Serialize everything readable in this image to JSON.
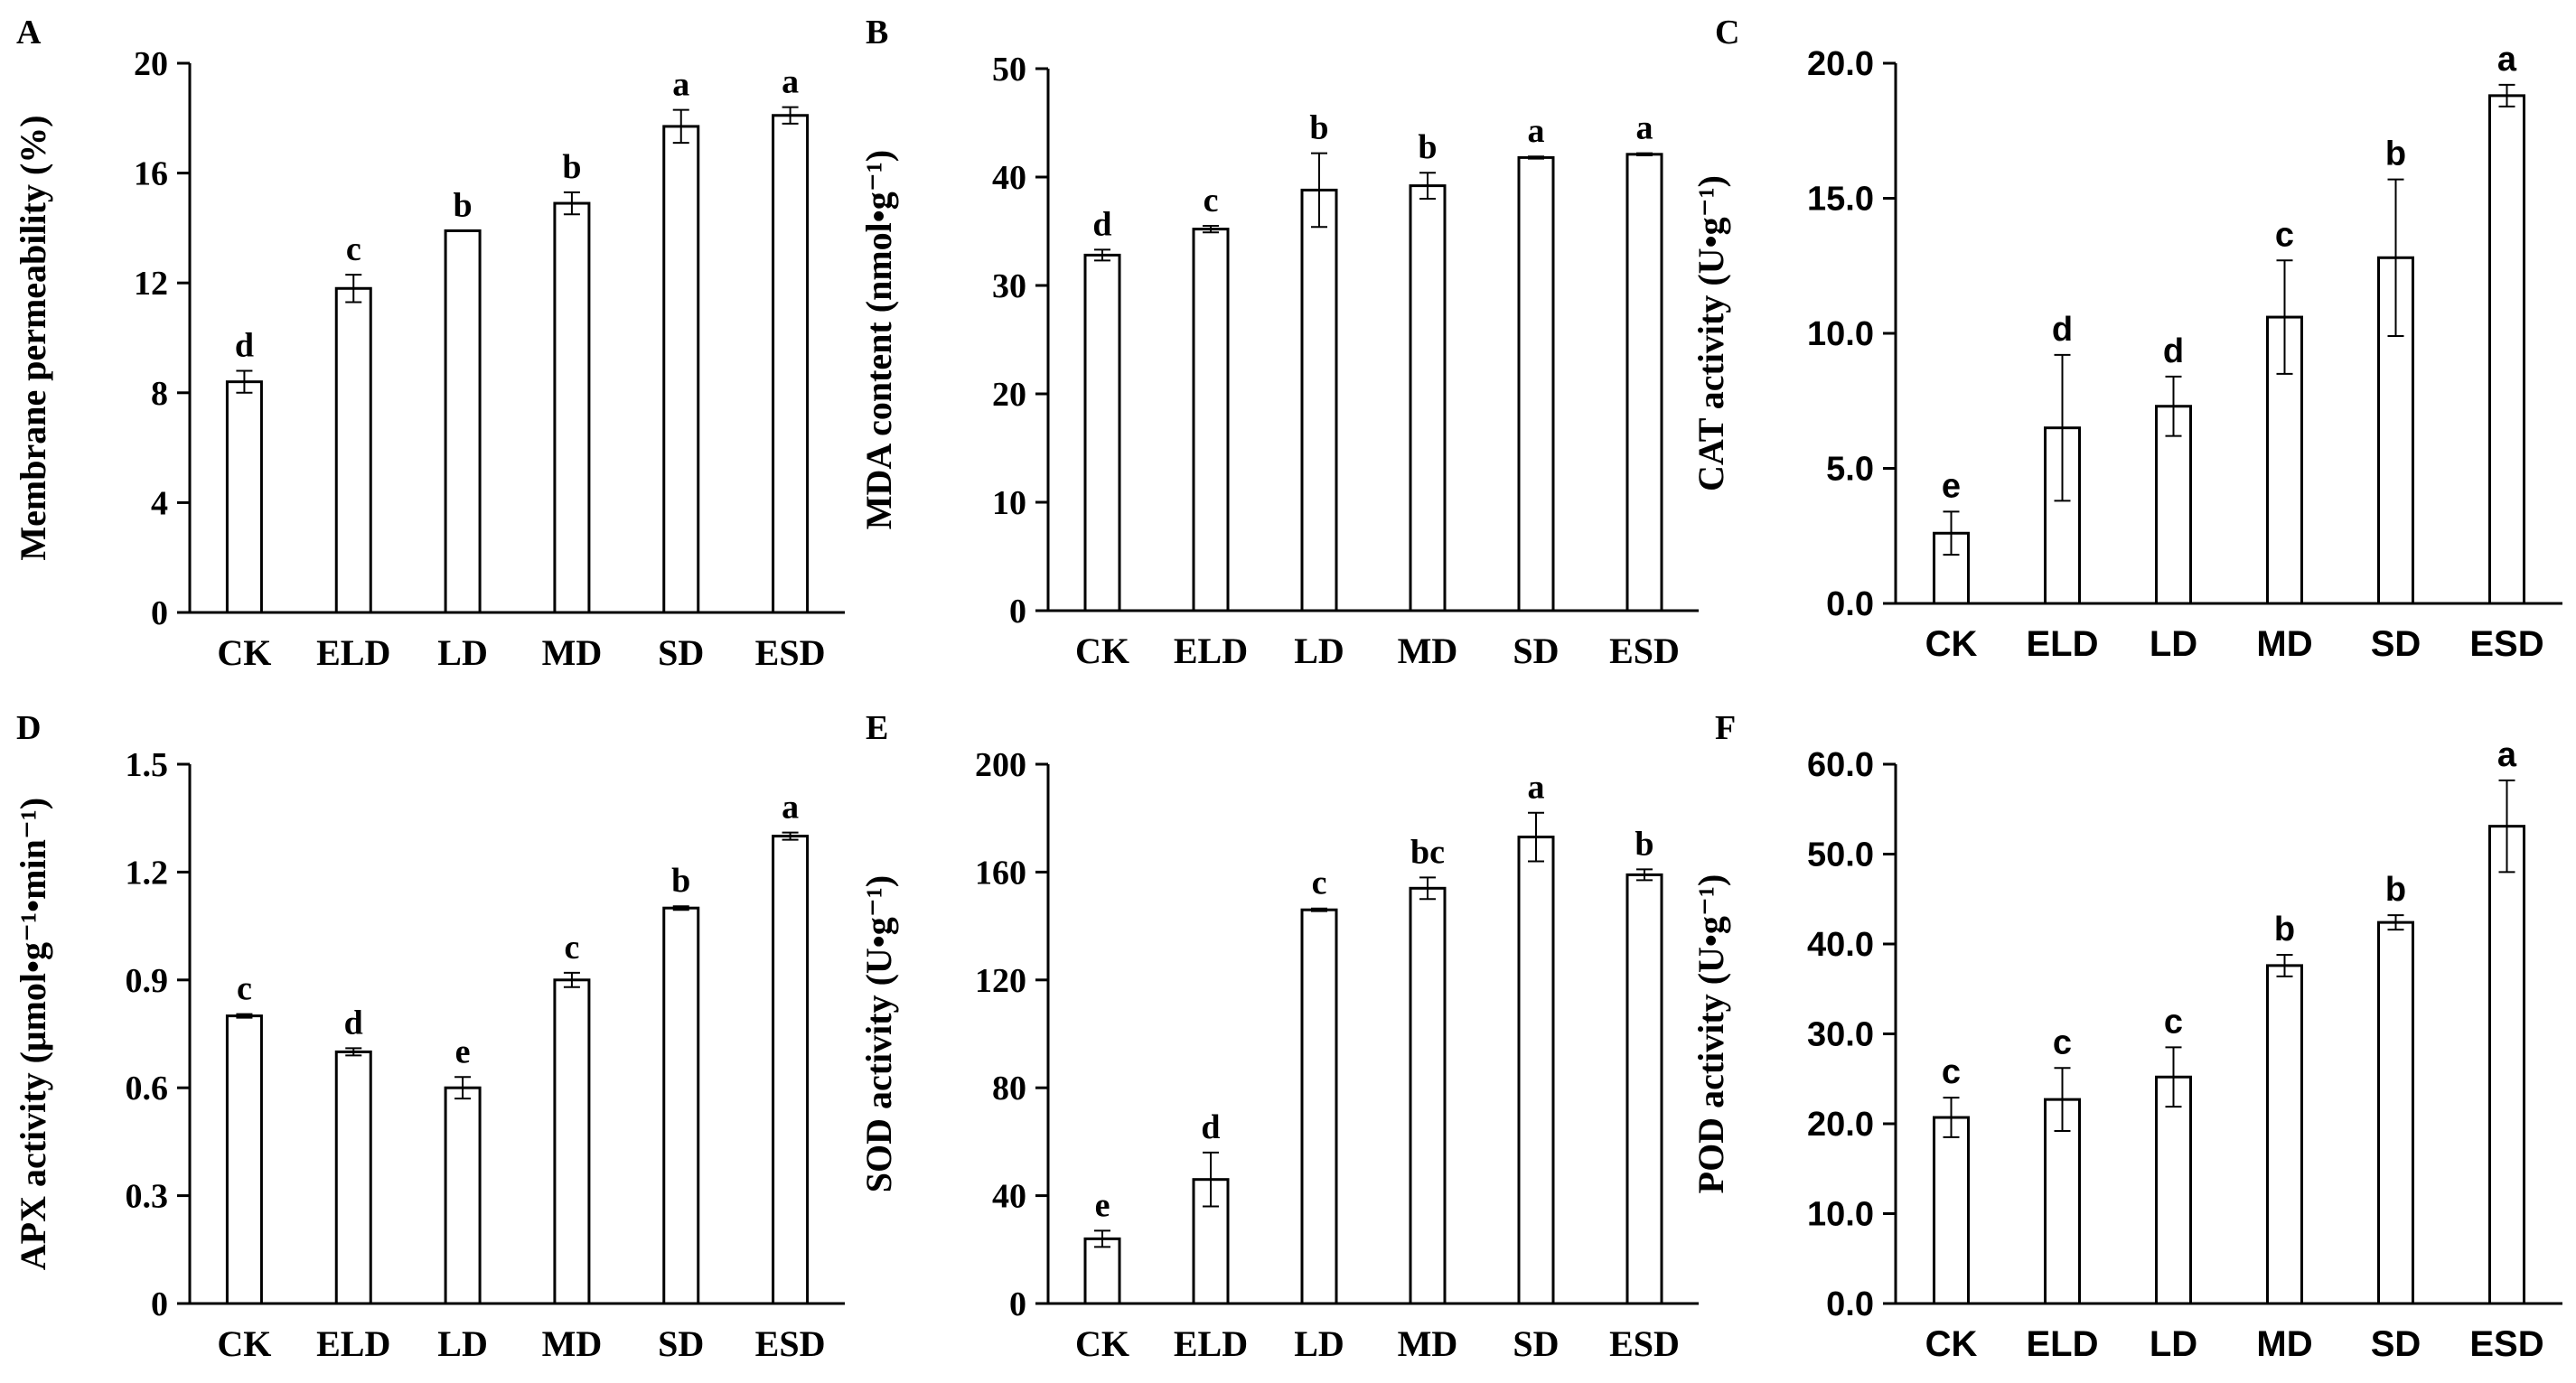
{
  "chart_data": [
    {
      "type": "bar",
      "panel": "A",
      "title": "",
      "xlabel": "",
      "ylabel": "Membrane permeability (%)",
      "categories": [
        "CK",
        "ELD",
        "LD",
        "MD",
        "SD",
        "ESD"
      ],
      "values": [
        8.4,
        11.8,
        13.9,
        14.9,
        17.7,
        18.1
      ],
      "errors": [
        0.4,
        0.5,
        0.0,
        0.4,
        0.6,
        0.3
      ],
      "letters": [
        "d",
        "c",
        "b",
        "b",
        "a",
        "a"
      ],
      "ylim": [
        0,
        20
      ],
      "yticks": [
        "0",
        "4",
        "8",
        "12",
        "16",
        "20"
      ],
      "grid": false
    },
    {
      "type": "bar",
      "panel": "B",
      "title": "",
      "xlabel": "",
      "ylabel": "MDA content (nmol•g⁻¹)",
      "categories": [
        "CK",
        "ELD",
        "LD",
        "MD",
        "SD",
        "ESD"
      ],
      "values": [
        32.8,
        35.2,
        38.8,
        39.2,
        41.8,
        42.1
      ],
      "errors": [
        0.5,
        0.3,
        3.4,
        1.2,
        0.1,
        0.1
      ],
      "letters": [
        "d",
        "c",
        "b",
        "b",
        "a",
        "a"
      ],
      "ylim": [
        0,
        50
      ],
      "yticks": [
        "0",
        "10",
        "20",
        "30",
        "40",
        "50"
      ],
      "grid": false
    },
    {
      "type": "bar",
      "panel": "C",
      "title": "",
      "xlabel": "",
      "ylabel": "CAT activity (U•g⁻¹)",
      "categories": [
        "CK",
        "ELD",
        "LD",
        "MD",
        "SD",
        "ESD"
      ],
      "values": [
        2.6,
        6.5,
        7.3,
        10.6,
        12.8,
        18.8
      ],
      "errors": [
        0.8,
        2.7,
        1.1,
        2.1,
        2.9,
        0.4
      ],
      "letters": [
        "e",
        "d",
        "d",
        "c",
        "b",
        "a"
      ],
      "ylim": [
        0,
        20
      ],
      "yticks": [
        "0.0",
        "5.0",
        "10.0",
        "15.0",
        "20.0"
      ],
      "grid": false
    },
    {
      "type": "bar",
      "panel": "D",
      "title": "",
      "xlabel": "",
      "ylabel": "APX activity (μmol•g⁻¹•min⁻¹)",
      "categories": [
        "CK",
        "ELD",
        "LD",
        "MD",
        "SD",
        "ESD"
      ],
      "values": [
        0.8,
        0.7,
        0.6,
        0.9,
        1.1,
        1.3
      ],
      "errors": [
        0.005,
        0.01,
        0.03,
        0.02,
        0.005,
        0.01
      ],
      "letters": [
        "c",
        "d",
        "e",
        "c",
        "b",
        "a"
      ],
      "ylim": [
        0,
        1.5
      ],
      "yticks": [
        "0",
        "0.3",
        "0.6",
        "0.9",
        "1.2",
        "1.5"
      ],
      "grid": false
    },
    {
      "type": "bar",
      "panel": "E",
      "title": "",
      "xlabel": "",
      "ylabel": "SOD activity (U•g⁻¹)",
      "categories": [
        "CK",
        "ELD",
        "LD",
        "MD",
        "SD",
        "ESD"
      ],
      "values": [
        24,
        46,
        146,
        154,
        173,
        159
      ],
      "errors": [
        3,
        10,
        0.5,
        4,
        9,
        2
      ],
      "letters": [
        "e",
        "d",
        "c",
        "bc",
        "a",
        "b"
      ],
      "ylim": [
        0,
        200
      ],
      "yticks": [
        "0",
        "40",
        "80",
        "120",
        "160",
        "200"
      ],
      "grid": false
    },
    {
      "type": "bar",
      "panel": "F",
      "title": "",
      "xlabel": "",
      "ylabel": "POD activity (U•g⁻¹)",
      "categories": [
        "CK",
        "ELD",
        "LD",
        "MD",
        "SD",
        "ESD"
      ],
      "values": [
        20.7,
        22.7,
        25.2,
        37.6,
        42.4,
        53.1
      ],
      "errors": [
        2.2,
        3.5,
        3.3,
        1.2,
        0.8,
        5.1
      ],
      "letters": [
        "c",
        "c",
        "c",
        "b",
        "b",
        "a"
      ],
      "ylim": [
        0,
        60
      ],
      "yticks": [
        "0.0",
        "10.0",
        "20.0",
        "30.0",
        "40.0",
        "50.0",
        "60.0"
      ],
      "grid": false
    }
  ],
  "colors": {
    "bar_fill": "#ffffff",
    "stroke": "#000000",
    "background": "#ffffff"
  }
}
